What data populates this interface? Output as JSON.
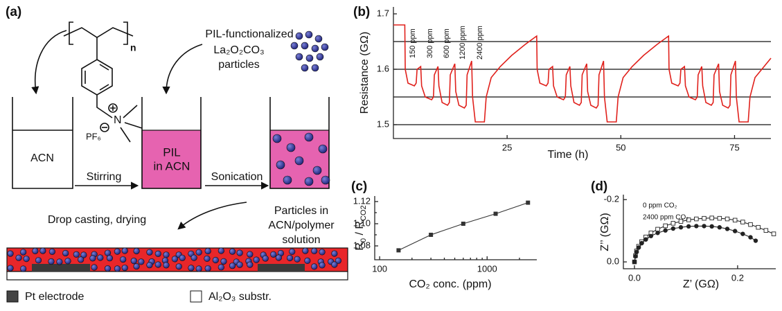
{
  "panel_labels": [
    "(a)",
    "(b)",
    "(c)",
    "(d)"
  ],
  "diagram": {
    "repeat_unit": "n",
    "cation": "N",
    "anion": "PF₆",
    "beaker_1": "ACN",
    "step_1": "Stirring",
    "beaker_2": [
      "PIL",
      "in ACN"
    ],
    "step_2": "Sonication",
    "particles": [
      "PIL-functionalized",
      "La₂O₂CO₃",
      "particles"
    ],
    "product": [
      "Particles in",
      "ACN/polymer",
      "solution"
    ],
    "step_3": "Drop casting, drying",
    "legend": [
      "Pt electrode",
      "Al₂O₃ substr."
    ]
  },
  "chart_data": [
    {
      "type": "line",
      "xlabel": "Time (h)",
      "ylabel": "Resistance (GΩ)",
      "annotations": [
        "150 ppm",
        "300 ppm",
        "600 ppm",
        "1200 ppm",
        "2400 ppm"
      ],
      "x": [
        0,
        2.5,
        2.6,
        3.2,
        4.6,
        5.0,
        5.2,
        6.0,
        6.2,
        7.0,
        8.4,
        8.8,
        9.0,
        9.8,
        10.0,
        10.7,
        11.9,
        12.3,
        12.5,
        13.5,
        13.7,
        14.4,
        15.6,
        16.0,
        16.2,
        17.2,
        17.4,
        18.0,
        20.0,
        20.4,
        21.5,
        23.5,
        26,
        29,
        31.5,
        31.6,
        32.2,
        33.6,
        34.0,
        34.2,
        35.0,
        35.2,
        36.0,
        37.4,
        37.8,
        38.0,
        38.8,
        39.0,
        39.7,
        40.9,
        41.3,
        41.5,
        42.5,
        42.7,
        43.4,
        44.6,
        45.0,
        45.2,
        46.2,
        46.4,
        47.0,
        49.0,
        49.4,
        50.5,
        52.5,
        55,
        58,
        60.5,
        60.6,
        61.2,
        62.6,
        63.0,
        63.2,
        64.0,
        64.2,
        65.0,
        66.4,
        66.8,
        67.0,
        67.8,
        68.0,
        68.7,
        69.9,
        70.3,
        70.5,
        71.5,
        71.7,
        72.4,
        73.6,
        74.0,
        74.2,
        75.2,
        75.4,
        76.0,
        78.0,
        78.4,
        79.5,
        81.5,
        83
      ],
      "series": [
        {
          "color": "#e0201b",
          "values": [
            1.68,
            1.68,
            1.6,
            1.575,
            1.57,
            1.575,
            1.6,
            1.605,
            1.57,
            1.55,
            1.545,
            1.55,
            1.59,
            1.605,
            1.57,
            1.54,
            1.535,
            1.54,
            1.59,
            1.61,
            1.56,
            1.535,
            1.53,
            1.535,
            1.59,
            1.615,
            1.55,
            1.505,
            1.505,
            1.55,
            1.585,
            1.605,
            1.625,
            1.645,
            1.66,
            1.6,
            1.575,
            1.57,
            1.575,
            1.6,
            1.605,
            1.57,
            1.55,
            1.545,
            1.55,
            1.59,
            1.605,
            1.57,
            1.54,
            1.535,
            1.54,
            1.59,
            1.61,
            1.56,
            1.535,
            1.53,
            1.535,
            1.59,
            1.615,
            1.55,
            1.505,
            1.505,
            1.55,
            1.585,
            1.605,
            1.625,
            1.645,
            1.66,
            1.6,
            1.575,
            1.57,
            1.575,
            1.6,
            1.605,
            1.57,
            1.55,
            1.545,
            1.55,
            1.59,
            1.605,
            1.57,
            1.54,
            1.535,
            1.54,
            1.59,
            1.61,
            1.56,
            1.535,
            1.53,
            1.535,
            1.59,
            1.615,
            1.55,
            1.505,
            1.505,
            1.55,
            1.585,
            1.605,
            1.62
          ]
        }
      ],
      "xlim": [
        0,
        83
      ],
      "xticks": [
        25,
        50,
        75
      ],
      "ylim": [
        1.475,
        1.7125
      ],
      "yticks": [
        1.5,
        1.6,
        1.7
      ],
      "grid_lines": [
        1.5,
        1.55,
        1.6,
        1.65
      ]
    },
    {
      "type": "line",
      "xscale": "log",
      "xlabel": "CO₂ conc. (ppm)",
      "ylabel": [
        "R",
        "0",
        " / R",
        "CO2"
      ],
      "x": [
        150,
        300,
        600,
        1200,
        2400
      ],
      "values": [
        1.076,
        1.09,
        1.1,
        1.109,
        1.119
      ],
      "color": "#333333",
      "marker": "square",
      "xlim": [
        90,
        2900
      ],
      "xticks": [
        100,
        1000
      ],
      "xminorticks": [
        200,
        300,
        400,
        500,
        600,
        700,
        800,
        900,
        2000
      ],
      "ylim": [
        1.0675,
        1.125
      ],
      "yticks": [
        1.08,
        {
          "value": 1.1,
          "label": "1.10"
        },
        1.12
      ],
      "yminorticks": [
        1.09,
        1.11
      ]
    },
    {
      "type": "scatter",
      "xlabel": "Z’ (GΩ)",
      "ylabel": "Z’’ (GΩ)",
      "series": [
        {
          "name": "0 ppm CO₂",
          "color": "#222222",
          "marker": "open-square",
          "x": [
            0.0,
            0.002,
            0.004,
            0.008,
            0.014,
            0.022,
            0.032,
            0.045,
            0.06,
            0.075,
            0.09,
            0.105,
            0.12,
            0.135,
            0.15,
            0.165,
            0.18,
            0.195,
            0.21,
            0.225,
            0.24,
            0.255,
            0.27
          ],
          "values": [
            0,
            -0.02,
            -0.035,
            -0.05,
            -0.065,
            -0.08,
            -0.093,
            -0.105,
            -0.116,
            -0.124,
            -0.13,
            -0.135,
            -0.138,
            -0.14,
            -0.141,
            -0.14,
            -0.138,
            -0.134,
            -0.128,
            -0.12,
            -0.111,
            -0.101,
            -0.09
          ]
        },
        {
          "name": "2400 ppm CO₂",
          "color": "#222222",
          "marker": "filled-circle",
          "x": [
            0.0,
            0.002,
            0.004,
            0.008,
            0.014,
            0.022,
            0.032,
            0.045,
            0.06,
            0.075,
            0.09,
            0.105,
            0.12,
            0.135,
            0.15,
            0.165,
            0.18,
            0.195,
            0.21,
            0.225,
            0.235
          ],
          "values": [
            0,
            -0.018,
            -0.032,
            -0.046,
            -0.06,
            -0.072,
            -0.083,
            -0.093,
            -0.101,
            -0.107,
            -0.111,
            -0.114,
            -0.115,
            -0.115,
            -0.114,
            -0.111,
            -0.106,
            -0.099,
            -0.09,
            -0.079,
            -0.068
          ]
        }
      ],
      "xlim": [
        -0.0215,
        0.274
      ],
      "xticks": [
        {
          "value": 0,
          "label": "0.0"
        },
        0.2
      ],
      "ylim": [
        0.022,
        -0.216
      ],
      "yticks": [
        {
          "value": 0,
          "label": "0.0"
        },
        -0.2
      ]
    }
  ]
}
